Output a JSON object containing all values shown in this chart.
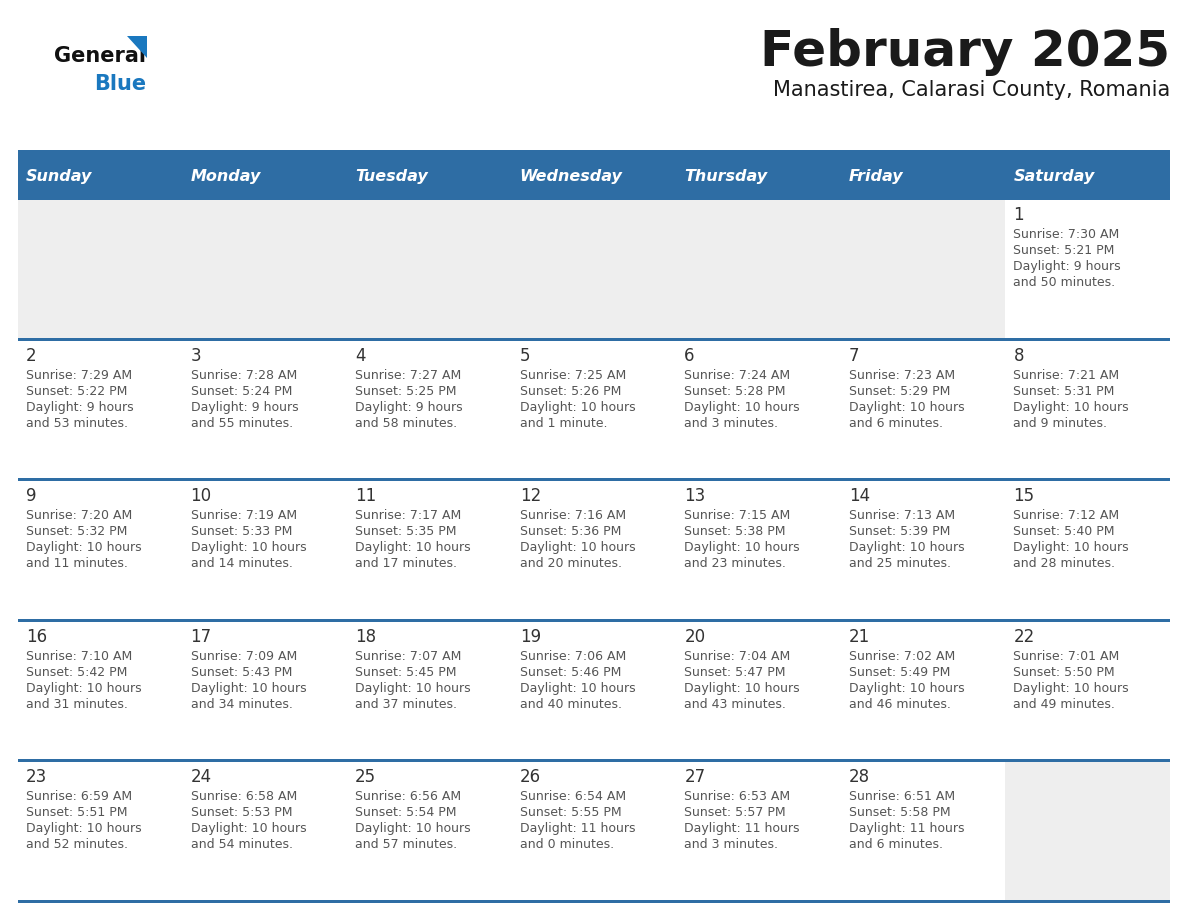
{
  "title": "February 2025",
  "subtitle": "Manastirea, Calarasi County, Romania",
  "days_of_week": [
    "Sunday",
    "Monday",
    "Tuesday",
    "Wednesday",
    "Thursday",
    "Friday",
    "Saturday"
  ],
  "header_bg": "#2e6da4",
  "header_text": "#ffffff",
  "cell_bg_empty": "#eeeeee",
  "cell_bg_filled": "#ffffff",
  "row_separator_color": "#2e6da4",
  "title_color": "#1a1a1a",
  "subtitle_color": "#1a1a1a",
  "day_number_color": "#333333",
  "cell_text_color": "#555555",
  "logo_general_color": "#111111",
  "logo_blue_color": "#1a78bf",
  "calendar_data": [
    [
      null,
      null,
      null,
      null,
      null,
      null,
      {
        "day": "1",
        "sunrise": "7:30 AM",
        "sunset": "5:21 PM",
        "daylight": "9 hours",
        "daylight2": "and 50 minutes."
      }
    ],
    [
      {
        "day": "2",
        "sunrise": "7:29 AM",
        "sunset": "5:22 PM",
        "daylight": "9 hours",
        "daylight2": "and 53 minutes."
      },
      {
        "day": "3",
        "sunrise": "7:28 AM",
        "sunset": "5:24 PM",
        "daylight": "9 hours",
        "daylight2": "and 55 minutes."
      },
      {
        "day": "4",
        "sunrise": "7:27 AM",
        "sunset": "5:25 PM",
        "daylight": "9 hours",
        "daylight2": "and 58 minutes."
      },
      {
        "day": "5",
        "sunrise": "7:25 AM",
        "sunset": "5:26 PM",
        "daylight": "10 hours",
        "daylight2": "and 1 minute."
      },
      {
        "day": "6",
        "sunrise": "7:24 AM",
        "sunset": "5:28 PM",
        "daylight": "10 hours",
        "daylight2": "and 3 minutes."
      },
      {
        "day": "7",
        "sunrise": "7:23 AM",
        "sunset": "5:29 PM",
        "daylight": "10 hours",
        "daylight2": "and 6 minutes."
      },
      {
        "day": "8",
        "sunrise": "7:21 AM",
        "sunset": "5:31 PM",
        "daylight": "10 hours",
        "daylight2": "and 9 minutes."
      }
    ],
    [
      {
        "day": "9",
        "sunrise": "7:20 AM",
        "sunset": "5:32 PM",
        "daylight": "10 hours",
        "daylight2": "and 11 minutes."
      },
      {
        "day": "10",
        "sunrise": "7:19 AM",
        "sunset": "5:33 PM",
        "daylight": "10 hours",
        "daylight2": "and 14 minutes."
      },
      {
        "day": "11",
        "sunrise": "7:17 AM",
        "sunset": "5:35 PM",
        "daylight": "10 hours",
        "daylight2": "and 17 minutes."
      },
      {
        "day": "12",
        "sunrise": "7:16 AM",
        "sunset": "5:36 PM",
        "daylight": "10 hours",
        "daylight2": "and 20 minutes."
      },
      {
        "day": "13",
        "sunrise": "7:15 AM",
        "sunset": "5:38 PM",
        "daylight": "10 hours",
        "daylight2": "and 23 minutes."
      },
      {
        "day": "14",
        "sunrise": "7:13 AM",
        "sunset": "5:39 PM",
        "daylight": "10 hours",
        "daylight2": "and 25 minutes."
      },
      {
        "day": "15",
        "sunrise": "7:12 AM",
        "sunset": "5:40 PM",
        "daylight": "10 hours",
        "daylight2": "and 28 minutes."
      }
    ],
    [
      {
        "day": "16",
        "sunrise": "7:10 AM",
        "sunset": "5:42 PM",
        "daylight": "10 hours",
        "daylight2": "and 31 minutes."
      },
      {
        "day": "17",
        "sunrise": "7:09 AM",
        "sunset": "5:43 PM",
        "daylight": "10 hours",
        "daylight2": "and 34 minutes."
      },
      {
        "day": "18",
        "sunrise": "7:07 AM",
        "sunset": "5:45 PM",
        "daylight": "10 hours",
        "daylight2": "and 37 minutes."
      },
      {
        "day": "19",
        "sunrise": "7:06 AM",
        "sunset": "5:46 PM",
        "daylight": "10 hours",
        "daylight2": "and 40 minutes."
      },
      {
        "day": "20",
        "sunrise": "7:04 AM",
        "sunset": "5:47 PM",
        "daylight": "10 hours",
        "daylight2": "and 43 minutes."
      },
      {
        "day": "21",
        "sunrise": "7:02 AM",
        "sunset": "5:49 PM",
        "daylight": "10 hours",
        "daylight2": "and 46 minutes."
      },
      {
        "day": "22",
        "sunrise": "7:01 AM",
        "sunset": "5:50 PM",
        "daylight": "10 hours",
        "daylight2": "and 49 minutes."
      }
    ],
    [
      {
        "day": "23",
        "sunrise": "6:59 AM",
        "sunset": "5:51 PM",
        "daylight": "10 hours",
        "daylight2": "and 52 minutes."
      },
      {
        "day": "24",
        "sunrise": "6:58 AM",
        "sunset": "5:53 PM",
        "daylight": "10 hours",
        "daylight2": "and 54 minutes."
      },
      {
        "day": "25",
        "sunrise": "6:56 AM",
        "sunset": "5:54 PM",
        "daylight": "10 hours",
        "daylight2": "and 57 minutes."
      },
      {
        "day": "26",
        "sunrise": "6:54 AM",
        "sunset": "5:55 PM",
        "daylight": "11 hours",
        "daylight2": "and 0 minutes."
      },
      {
        "day": "27",
        "sunrise": "6:53 AM",
        "sunset": "5:57 PM",
        "daylight": "11 hours",
        "daylight2": "and 3 minutes."
      },
      {
        "day": "28",
        "sunrise": "6:51 AM",
        "sunset": "5:58 PM",
        "daylight": "11 hours",
        "daylight2": "and 6 minutes."
      },
      null
    ]
  ]
}
